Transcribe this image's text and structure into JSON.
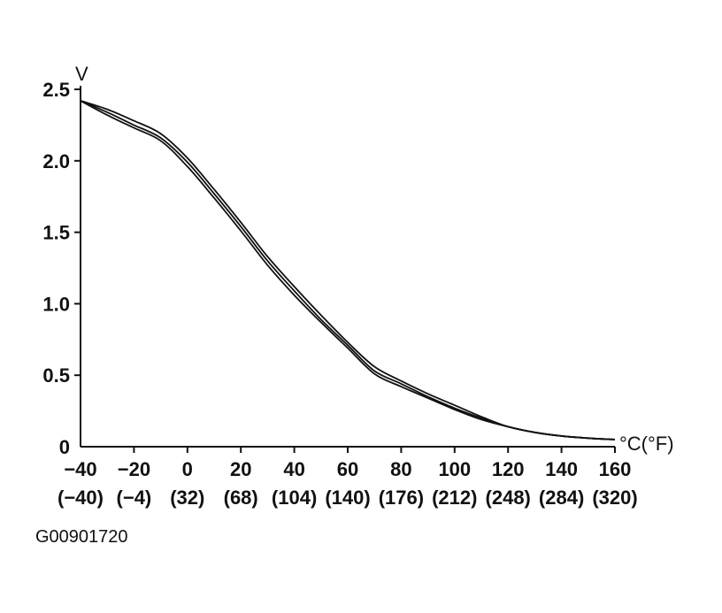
{
  "chart_data": {
    "type": "line",
    "title": "",
    "ylabel": "V",
    "xlabel": "°C(°F)",
    "xlim": [
      -40,
      160
    ],
    "ylim": [
      0,
      2.5
    ],
    "x_ticks": [
      {
        "c": "−40",
        "f": "(−40)"
      },
      {
        "c": "−20",
        "f": "(−4)"
      },
      {
        "c": "0",
        "f": "(32)"
      },
      {
        "c": "20",
        "f": "(68)"
      },
      {
        "c": "40",
        "f": "(104)"
      },
      {
        "c": "60",
        "f": "(140)"
      },
      {
        "c": "80",
        "f": "(176)"
      },
      {
        "c": "100",
        "f": "(212)"
      },
      {
        "c": "120",
        "f": "(248)"
      },
      {
        "c": "140",
        "f": "(284)"
      },
      {
        "c": "160",
        "f": "(320)"
      }
    ],
    "y_ticks": [
      "0",
      "0.5",
      "1.0",
      "1.5",
      "2.0",
      "2.5"
    ],
    "grid": false,
    "legend": "none",
    "line_color": "#111111",
    "series": [
      {
        "x": [
          -40,
          -30,
          -20,
          -10,
          0,
          10,
          20,
          30,
          40,
          50,
          60,
          70,
          80,
          90,
          100,
          110,
          120,
          130,
          140,
          150,
          160
        ],
        "values": [
          2.42,
          2.36,
          2.28,
          2.19,
          2.02,
          1.8,
          1.57,
          1.33,
          1.12,
          0.92,
          0.73,
          0.56,
          0.46,
          0.37,
          0.29,
          0.21,
          0.14,
          0.1,
          0.075,
          0.06,
          0.05
        ]
      },
      {
        "x": [
          -40,
          -30,
          -20,
          -10,
          0,
          10,
          20,
          30,
          40,
          50,
          60,
          70,
          80,
          90,
          100,
          110,
          120,
          130,
          140,
          150,
          160
        ],
        "values": [
          2.42,
          2.34,
          2.25,
          2.16,
          1.99,
          1.77,
          1.54,
          1.3,
          1.09,
          0.89,
          0.71,
          0.53,
          0.44,
          0.35,
          0.27,
          0.2,
          0.14,
          0.1,
          0.075,
          0.06,
          0.05
        ]
      },
      {
        "x": [
          -40,
          -30,
          -20,
          -10,
          0,
          10,
          20,
          30,
          40,
          50,
          60,
          70,
          80,
          90,
          100,
          110,
          120,
          130,
          140,
          150,
          160
        ],
        "values": [
          2.42,
          2.32,
          2.23,
          2.14,
          1.96,
          1.74,
          1.51,
          1.27,
          1.06,
          0.87,
          0.69,
          0.51,
          0.42,
          0.34,
          0.26,
          0.19,
          0.14,
          0.1,
          0.075,
          0.06,
          0.05
        ]
      }
    ]
  },
  "figure_code": "G00901720"
}
